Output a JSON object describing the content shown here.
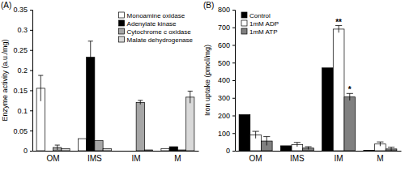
{
  "chart_data": [
    {
      "type": "bar",
      "title": "(A)",
      "y_label": "Enzyme activity (a.u./mg)",
      "categories": [
        "OM",
        "IMS",
        "IM",
        "M"
      ],
      "series": [
        {
          "name": "Monoamine oxidase",
          "color": "#ffffff",
          "values": [
            0.155,
            0.03,
            0.0,
            0.005
          ],
          "errors": [
            0.032,
            null,
            null,
            null
          ]
        },
        {
          "name": "Adenylate kinase",
          "color": "#000000",
          "values": [
            0.0,
            0.232,
            0.0,
            0.01
          ],
          "errors": [
            null,
            0.04,
            null,
            null
          ]
        },
        {
          "name": "Cytochrome c oxidase",
          "color": "#a6a6a6",
          "values": [
            0.008,
            0.025,
            0.12,
            0.002
          ],
          "errors": [
            0.006,
            null,
            0.005,
            null
          ]
        },
        {
          "name": "Malate dehydrogenase",
          "color": "#d9d9d9",
          "values": [
            0.005,
            0.005,
            0.002,
            0.133
          ],
          "errors": [
            null,
            null,
            null,
            0.015
          ]
        }
      ],
      "ylim": [
        0,
        0.35
      ],
      "yticks": [
        0,
        0.05,
        0.1,
        0.15,
        0.2,
        0.25,
        0.3,
        0.35
      ],
      "legend": "upper right",
      "grid": false
    },
    {
      "type": "bar",
      "title": "(B)",
      "y_label": "Iron uptake (pmol/mg)",
      "categories": [
        "OM",
        "IMS",
        "IM",
        "M"
      ],
      "series": [
        {
          "name": "Control",
          "color": "#000000",
          "values": [
            205,
            28,
            470,
            2
          ]
        },
        {
          "name": "1mM ADP",
          "color": "#ffffff",
          "values": [
            90,
            35,
            690,
            38
          ],
          "errors": [
            20,
            12,
            20,
            12
          ]
        },
        {
          "name": "1mM ATP",
          "color": "#808080",
          "values": [
            55,
            15,
            305,
            10
          ],
          "errors": [
            25,
            8,
            20,
            10
          ]
        }
      ],
      "annotations": [
        {
          "text": "**",
          "category": "IM",
          "series": "1mM ADP"
        },
        {
          "text": "*",
          "category": "IM",
          "series": "1mM ATP"
        }
      ],
      "ylim": [
        0,
        800
      ],
      "yticks": [
        0,
        100,
        200,
        300,
        400,
        500,
        600,
        700,
        800
      ],
      "legend": "upper left",
      "grid": false
    }
  ]
}
